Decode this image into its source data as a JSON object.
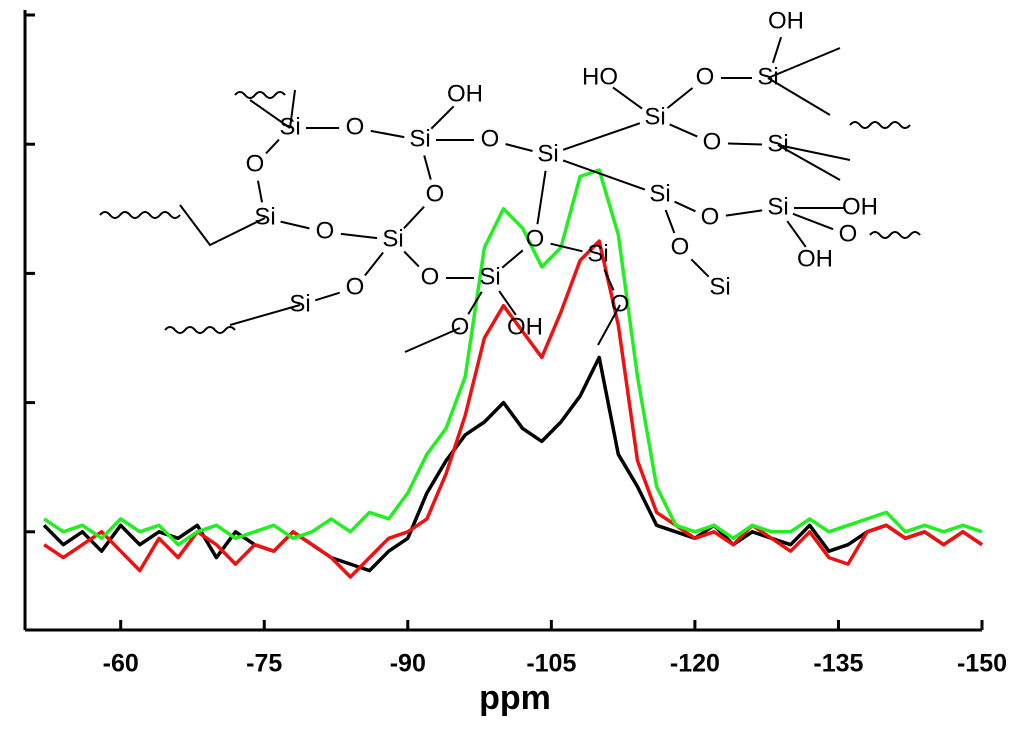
{
  "chart_data": {
    "type": "line",
    "x_label": "ppm",
    "x": [
      -52,
      -54,
      -56,
      -58,
      -60,
      -62,
      -64,
      -66,
      -68,
      -70,
      -72,
      -74,
      -76,
      -78,
      -80,
      -82,
      -84,
      -86,
      -88,
      -90,
      -92,
      -94,
      -96,
      -98,
      -100,
      -102,
      -104,
      -106,
      -108,
      -110,
      -112,
      -114,
      -116,
      -118,
      -120,
      -122,
      -124,
      -126,
      -128,
      -130,
      -132,
      -134,
      -136,
      -138,
      -140,
      -142,
      -144,
      -146,
      -148,
      -150
    ],
    "series": [
      {
        "color": "#000000",
        "values": [
          0.05,
          -0.1,
          0.0,
          -0.15,
          0.05,
          -0.1,
          0.0,
          -0.05,
          0.05,
          -0.2,
          0.0,
          -0.1,
          -0.15,
          0.0,
          -0.1,
          -0.2,
          -0.25,
          -0.3,
          -0.15,
          -0.05,
          0.3,
          0.55,
          0.75,
          0.85,
          1.0,
          0.8,
          0.7,
          0.85,
          1.05,
          1.35,
          0.6,
          0.35,
          0.05,
          0.0,
          -0.05,
          0.05,
          -0.1,
          0.0,
          -0.05,
          -0.1,
          0.05,
          -0.15,
          -0.1,
          0.0,
          0.05,
          -0.05,
          0.0,
          -0.1,
          0.0,
          -0.1
        ]
      },
      {
        "color": "#ee1111",
        "values": [
          -0.1,
          -0.2,
          -0.1,
          0.0,
          -0.15,
          -0.3,
          -0.05,
          -0.2,
          0.0,
          -0.1,
          -0.25,
          -0.1,
          -0.15,
          0.0,
          -0.1,
          -0.2,
          -0.35,
          -0.2,
          -0.05,
          0.0,
          0.1,
          0.45,
          0.9,
          1.5,
          1.75,
          1.55,
          1.35,
          1.7,
          2.1,
          2.25,
          1.6,
          0.55,
          0.15,
          0.05,
          -0.05,
          0.0,
          -0.1,
          0.05,
          -0.05,
          -0.15,
          0.0,
          -0.2,
          -0.25,
          0.0,
          0.05,
          -0.05,
          0.0,
          -0.1,
          0.0,
          -0.1
        ]
      },
      {
        "color": "#22ee22",
        "values": [
          0.1,
          0.0,
          0.05,
          -0.05,
          0.1,
          0.0,
          0.05,
          -0.1,
          0.0,
          0.05,
          -0.05,
          0.0,
          0.05,
          -0.05,
          0.0,
          0.1,
          0.0,
          0.15,
          0.1,
          0.3,
          0.6,
          0.8,
          1.2,
          2.2,
          2.5,
          2.35,
          2.05,
          2.2,
          2.75,
          2.8,
          2.3,
          1.2,
          0.35,
          0.05,
          0.0,
          0.05,
          -0.05,
          0.05,
          0.0,
          0.0,
          0.1,
          0.0,
          0.05,
          0.1,
          0.15,
          0.0,
          0.05,
          0.0,
          0.05,
          0.0
        ]
      }
    ],
    "xlim": [
      -50,
      -150
    ],
    "xticks": [
      -60,
      -75,
      -90,
      -105,
      -120,
      -135,
      -150
    ],
    "ylim": [
      -0.76,
      4.0
    ],
    "yticks": [
      0,
      1,
      2,
      3,
      4
    ],
    "annotations": [
      "Si",
      "O",
      "Si",
      "OH",
      "O",
      "Si",
      "O",
      "O",
      "Si",
      "O",
      "Si",
      "O",
      "Si",
      "O",
      "Si",
      "O",
      "Si",
      "O",
      "O",
      "OH",
      "HO",
      "O",
      "Si",
      "OH",
      "Si",
      "O",
      "Si",
      "Si",
      "O",
      "Si",
      "OH",
      "O",
      "OH",
      "O",
      "Si"
    ]
  }
}
